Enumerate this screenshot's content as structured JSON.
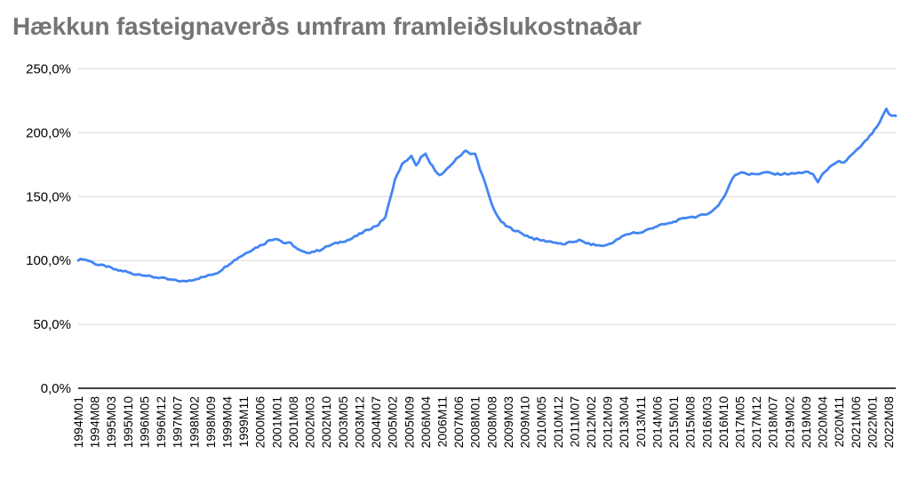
{
  "title": "Hækkun fasteignaverðs umfram framleiðslukostnaðar",
  "colors": {
    "title": "#757575",
    "line": "#4285f4",
    "gridline": "#d9d9d9",
    "axis_line": "#424242",
    "tick_label": "#000000",
    "background": "#ffffff"
  },
  "chart_data": {
    "type": "line",
    "title": "Hækkun fasteignaverðs umfram framleiðslukostnaðar",
    "legend": "none",
    "grid": "horizontal",
    "x_frequency": "monthly",
    "x_start": "1994M01",
    "x_end": "2022M11",
    "ylim": [
      0,
      250
    ],
    "y_ticks": [
      {
        "label": "0,0%",
        "value": 0
      },
      {
        "label": "50,0%",
        "value": 50
      },
      {
        "label": "100,0%",
        "value": 100
      },
      {
        "label": "150,0%",
        "value": 150
      },
      {
        "label": "200,0%",
        "value": 200
      },
      {
        "label": "250,0%",
        "value": 250
      }
    ],
    "x_tick_every_n_months": 7,
    "x_tick_labels": [
      "1994M01",
      "1994M08",
      "1995M03",
      "1995M10",
      "1996M05",
      "1996M12",
      "1997M07",
      "1998M02",
      "1998M09",
      "1999M04",
      "1999M11",
      "2000M06",
      "2001M01",
      "2001M08",
      "2002M03",
      "2002M10",
      "2003M05",
      "2003M12",
      "2004M07",
      "2005M02",
      "2005M09",
      "2006M04",
      "2006M11",
      "2007M06",
      "2008M01",
      "2008M08",
      "2009M03",
      "2009M10",
      "2010M05",
      "2010M12",
      "2011M07",
      "2012M02",
      "2012M09",
      "2013M04",
      "2013M11",
      "2014M06",
      "2015M01",
      "2015M08",
      "2016M03",
      "2016M10",
      "2017M05",
      "2017M12",
      "2018M07",
      "2019M02",
      "2019M09",
      "2020M04",
      "2020M11",
      "2021M06",
      "2022M01",
      "2022M08"
    ],
    "series_unit": "percent",
    "anchors": [
      [
        "1994M01",
        100.0
      ],
      [
        "1994M03",
        101.3
      ],
      [
        "1994M06",
        99.5
      ],
      [
        "1994M09",
        96.8
      ],
      [
        "1995M01",
        95.5
      ],
      [
        "1995M05",
        92.5
      ],
      [
        "1995M09",
        91.5
      ],
      [
        "1995M12",
        89.5
      ],
      [
        "1996M04",
        89.0
      ],
      [
        "1996M08",
        87.2
      ],
      [
        "1996M12",
        86.5
      ],
      [
        "1997M03",
        85.2
      ],
      [
        "1997M07",
        84.2
      ],
      [
        "1997M10",
        83.6
      ],
      [
        "1998M01",
        84.8
      ],
      [
        "1998M06",
        87.0
      ],
      [
        "1998M12",
        90.5
      ],
      [
        "1999M05",
        97.5
      ],
      [
        "1999M09",
        102.5
      ],
      [
        "2000M03",
        109.0
      ],
      [
        "2000M08",
        113.5
      ],
      [
        "2000M10",
        116.0
      ],
      [
        "2001M01",
        117.3
      ],
      [
        "2001M04",
        113.8
      ],
      [
        "2001M07",
        113.5
      ],
      [
        "2001M10",
        108.5
      ],
      [
        "2002M01",
        106.0
      ],
      [
        "2002M04",
        106.8
      ],
      [
        "2002M07",
        108.0
      ],
      [
        "2002M11",
        111.5
      ],
      [
        "2003M03",
        114.0
      ],
      [
        "2003M08",
        116.5
      ],
      [
        "2003M12",
        120.5
      ],
      [
        "2004M04",
        124.5
      ],
      [
        "2004M08",
        128.0
      ],
      [
        "2004M11",
        134.0
      ],
      [
        "2005M01",
        148.0
      ],
      [
        "2005M03",
        163.0
      ],
      [
        "2005M06",
        175.0
      ],
      [
        "2005M08",
        178.5
      ],
      [
        "2005M10",
        181.5
      ],
      [
        "2005M12",
        174.0
      ],
      [
        "2006M02",
        180.5
      ],
      [
        "2006M04",
        183.0
      ],
      [
        "2006M06",
        176.0
      ],
      [
        "2006M08",
        171.0
      ],
      [
        "2006M10",
        166.5
      ],
      [
        "2006M12",
        169.0
      ],
      [
        "2007M03",
        175.5
      ],
      [
        "2007M06",
        181.0
      ],
      [
        "2007M09",
        186.5
      ],
      [
        "2007M11",
        183.0
      ],
      [
        "2008M01",
        183.5
      ],
      [
        "2008M03",
        172.0
      ],
      [
        "2008M05",
        161.5
      ],
      [
        "2008M08",
        144.0
      ],
      [
        "2008M11",
        132.5
      ],
      [
        "2009M02",
        127.0
      ],
      [
        "2009M06",
        123.5
      ],
      [
        "2009M10",
        120.0
      ],
      [
        "2010M02",
        117.0
      ],
      [
        "2010M06",
        115.5
      ],
      [
        "2010M10",
        114.5
      ],
      [
        "2011M02",
        112.5
      ],
      [
        "2011M06",
        114.5
      ],
      [
        "2011M09",
        115.8
      ],
      [
        "2012M01",
        113.0
      ],
      [
        "2012M05",
        111.8
      ],
      [
        "2012M08",
        111.5
      ],
      [
        "2012M12",
        115.0
      ],
      [
        "2013M04",
        119.5
      ],
      [
        "2013M08",
        122.0
      ],
      [
        "2013M11",
        121.5
      ],
      [
        "2014M03",
        125.0
      ],
      [
        "2014M07",
        127.5
      ],
      [
        "2014M11",
        129.0
      ],
      [
        "2015M03",
        131.5
      ],
      [
        "2015M07",
        134.0
      ],
      [
        "2015M11",
        134.3
      ],
      [
        "2016M02",
        136.0
      ],
      [
        "2016M05",
        138.0
      ],
      [
        "2016M08",
        143.5
      ],
      [
        "2016M11",
        152.0
      ],
      [
        "2017M01",
        161.0
      ],
      [
        "2017M03",
        167.0
      ],
      [
        "2017M06",
        169.5
      ],
      [
        "2017M09",
        167.3
      ],
      [
        "2018M01",
        168.0
      ],
      [
        "2018M04",
        169.0
      ],
      [
        "2018M08",
        167.5
      ],
      [
        "2018M12",
        167.8
      ],
      [
        "2019M04",
        168.0
      ],
      [
        "2019M09",
        169.3
      ],
      [
        "2019M12",
        167.5
      ],
      [
        "2020M02",
        161.5
      ],
      [
        "2020M05",
        170.0
      ],
      [
        "2020M08",
        174.0
      ],
      [
        "2020M11",
        177.5
      ],
      [
        "2021M01",
        176.5
      ],
      [
        "2021M04",
        182.0
      ],
      [
        "2021M07",
        187.0
      ],
      [
        "2021M10",
        193.0
      ],
      [
        "2022M01",
        199.5
      ],
      [
        "2022M04",
        207.0
      ],
      [
        "2022M07",
        219.0
      ],
      [
        "2022M08",
        214.5
      ],
      [
        "2022M09",
        213.5
      ],
      [
        "2022M11",
        213.2
      ]
    ]
  }
}
